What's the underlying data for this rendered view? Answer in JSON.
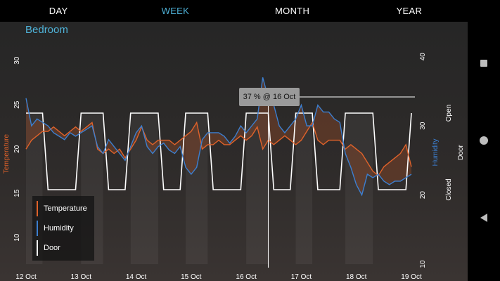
{
  "tabs": [
    {
      "label": "DAY",
      "active": false
    },
    {
      "label": "WEEK",
      "active": true
    },
    {
      "label": "MONTH",
      "active": false
    },
    {
      "label": "YEAR",
      "active": false
    }
  ],
  "room_title": "Bedroom",
  "tooltip": "37 % @ 16 Oct",
  "colors": {
    "accent": "#4fb3d9",
    "temperature": "#e0622a",
    "humidity": "#3c7fd0",
    "door": "#ffffff"
  },
  "nav_icons": [
    "square-recents-icon",
    "circle-home-icon",
    "triangle-back-icon"
  ],
  "chart_data": {
    "type": "line",
    "x_ticks": [
      "12 Oct",
      "13 Oct",
      "14 Oct",
      "15 Oct",
      "16 Oct",
      "17 Oct",
      "18 Oct",
      "19 Oct"
    ],
    "left_axis": {
      "label": "Temperature",
      "ticks": [
        "10",
        "15",
        "20",
        "25",
        "30"
      ],
      "range": [
        7,
        32
      ]
    },
    "right_axis_humidity": {
      "label": "Humidity",
      "ticks": [
        "10",
        "20",
        "30",
        "40"
      ],
      "range": [
        10,
        42
      ]
    },
    "right_axis_door": {
      "label": "Door",
      "ticks": [
        "Closed",
        "Open"
      ]
    },
    "legend": [
      "Temperature",
      "Humidity",
      "Door"
    ],
    "series": [
      {
        "name": "Temperature",
        "axis": "left",
        "x": [
          12.0,
          12.1,
          12.2,
          12.3,
          12.4,
          12.5,
          12.6,
          12.7,
          12.8,
          12.9,
          13.0,
          13.1,
          13.2,
          13.3,
          13.4,
          13.5,
          13.6,
          13.7,
          13.8,
          13.9,
          14.0,
          14.1,
          14.2,
          14.3,
          14.4,
          14.5,
          14.6,
          14.7,
          14.8,
          14.9,
          15.0,
          15.1,
          15.2,
          15.3,
          15.4,
          15.5,
          15.6,
          15.7,
          15.8,
          15.9,
          16.0,
          16.1,
          16.2,
          16.3,
          16.4,
          16.5,
          16.6,
          16.7,
          16.8,
          16.9,
          17.0,
          17.1,
          17.2,
          17.3,
          17.4,
          17.5,
          17.6,
          17.7,
          17.8,
          17.9,
          18.0,
          18.1,
          18.2,
          18.3,
          18.4,
          18.5,
          18.6,
          18.7,
          18.8,
          18.9,
          19.0
        ],
        "y": [
          20,
          21,
          21.5,
          22,
          22,
          22.5,
          22,
          21.5,
          22,
          22.5,
          22,
          22.5,
          23,
          20,
          19.5,
          20,
          19.5,
          20,
          19,
          20,
          21,
          22.5,
          21,
          20.5,
          21,
          21,
          21,
          20.5,
          21,
          21.5,
          22,
          23,
          20,
          20.5,
          20.5,
          21,
          20.5,
          20.5,
          21,
          21.5,
          21,
          21.5,
          22.5,
          20,
          21,
          20.5,
          21,
          21.5,
          21,
          20.5,
          21,
          22,
          23,
          21,
          20.5,
          21,
          21,
          21,
          20,
          20.5,
          20,
          19.5,
          18.5,
          17.5,
          17,
          18,
          18.5,
          19,
          19.5,
          20.5,
          18
        ]
      },
      {
        "name": "Humidity",
        "axis": "right",
        "x": [
          12.0,
          12.1,
          12.2,
          12.3,
          12.4,
          12.5,
          12.6,
          12.7,
          12.8,
          12.9,
          13.0,
          13.1,
          13.2,
          13.3,
          13.4,
          13.5,
          13.6,
          13.7,
          13.8,
          13.9,
          14.0,
          14.1,
          14.2,
          14.3,
          14.4,
          14.5,
          14.6,
          14.7,
          14.8,
          14.9,
          15.0,
          15.1,
          15.2,
          15.3,
          15.4,
          15.5,
          15.6,
          15.7,
          15.8,
          15.9,
          16.0,
          16.1,
          16.2,
          16.3,
          16.4,
          16.5,
          16.6,
          16.7,
          16.8,
          16.9,
          17.0,
          17.1,
          17.2,
          17.3,
          17.4,
          17.5,
          17.6,
          17.7,
          17.8,
          17.9,
          18.0,
          18.1,
          18.2,
          18.3,
          18.4,
          18.5,
          18.6,
          18.7,
          18.8,
          18.9,
          19.0
        ],
        "y": [
          34,
          30,
          31,
          30.5,
          30,
          29,
          28.5,
          28,
          29,
          28.5,
          29,
          29.5,
          30,
          27,
          26,
          28,
          27,
          26,
          25,
          27,
          29,
          30,
          27,
          26,
          27,
          27.5,
          26.5,
          26,
          27,
          24,
          23,
          24,
          28,
          29,
          29,
          29,
          28.5,
          27.5,
          28.5,
          30,
          29,
          30,
          31,
          37,
          34,
          33,
          30,
          29,
          30,
          31,
          33,
          30,
          30,
          33,
          32,
          32,
          31,
          30.5,
          26,
          24,
          21.5,
          20,
          23,
          22.5,
          23,
          22,
          21.5,
          22,
          22,
          22.5,
          23
        ]
      },
      {
        "name": "Door",
        "axis": "door",
        "note": "values 1 = Open, 0 = Closed",
        "x": [
          12.0,
          12.3,
          12.4,
          12.9,
          13.0,
          13.4,
          13.5,
          13.8,
          13.9,
          14.4,
          14.5,
          14.8,
          14.9,
          15.3,
          15.4,
          15.9,
          16.0,
          16.4,
          16.5,
          16.8,
          16.9,
          17.2,
          17.3,
          17.7,
          17.8,
          18.3,
          18.4,
          18.9,
          19.0
        ],
        "y": [
          1,
          1,
          0,
          0,
          1,
          1,
          0,
          0,
          1,
          1,
          0,
          0,
          1,
          1,
          0,
          0,
          1,
          1,
          0,
          0,
          1,
          1,
          0,
          0,
          1,
          1,
          0,
          0,
          1
        ]
      }
    ],
    "marker": {
      "x": 16.4,
      "value": "37 %"
    }
  }
}
